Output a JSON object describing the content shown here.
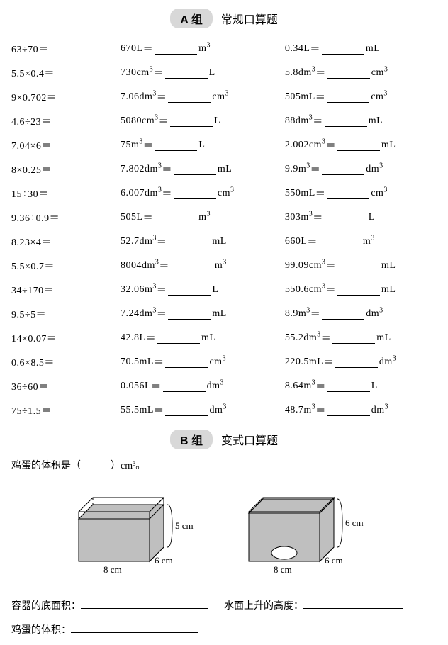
{
  "sectionA": {
    "badge": "A 组",
    "title": "常规口算题"
  },
  "sectionB": {
    "badge": "B 组",
    "title": "变式口算题"
  },
  "col1": [
    "63÷70＝",
    "5.5×0.4＝",
    "9×0.702＝",
    "4.6÷23＝",
    "7.04×6＝",
    "8×0.25＝",
    "15÷30＝",
    "9.36÷0.9＝",
    "8.23×4＝",
    "5.5×0.7＝",
    "34÷170＝",
    "9.5÷5＝",
    "14×0.07＝",
    "0.6×8.5＝",
    "36÷60＝",
    "75÷1.5＝"
  ],
  "col2": [
    {
      "val": "670",
      "f": "L",
      "t": "m³"
    },
    {
      "val": "730",
      "f": "cm³",
      "t": "L"
    },
    {
      "val": "7.06",
      "f": "dm³",
      "t": "cm³"
    },
    {
      "val": "5080",
      "f": "cm³",
      "t": "L"
    },
    {
      "val": "75",
      "f": "m³",
      "t": "L"
    },
    {
      "val": "7.802",
      "f": "dm³",
      "t": "mL"
    },
    {
      "val": "6.007",
      "f": "dm³",
      "t": "cm³"
    },
    {
      "val": "505",
      "f": "L",
      "t": "m³"
    },
    {
      "val": "52.7",
      "f": "dm³",
      "t": "mL"
    },
    {
      "val": "8004",
      "f": "dm³",
      "t": "m³"
    },
    {
      "val": "32.06",
      "f": "m³",
      "t": "L"
    },
    {
      "val": "7.24",
      "f": "dm³",
      "t": "mL"
    },
    {
      "val": "42.8",
      "f": "L",
      "t": "mL"
    },
    {
      "val": "70.5",
      "f": "mL",
      "t": "cm³"
    },
    {
      "val": "0.056",
      "f": "L",
      "t": "dm³"
    },
    {
      "val": "55.5",
      "f": "mL",
      "t": "dm³"
    }
  ],
  "col3": [
    {
      "val": "0.34",
      "f": "L",
      "t": "mL"
    },
    {
      "val": "5.8",
      "f": "dm³",
      "t": "cm³"
    },
    {
      "val": "505",
      "f": "mL",
      "t": "cm³"
    },
    {
      "val": "88",
      "f": "dm³",
      "t": "mL"
    },
    {
      "val": "2.002",
      "f": "cm³",
      "t": "mL"
    },
    {
      "val": "9.9",
      "f": "m³",
      "t": "dm³"
    },
    {
      "val": "550",
      "f": "mL",
      "t": "cm³"
    },
    {
      "val": "303",
      "f": "m³",
      "t": "L"
    },
    {
      "val": "660",
      "f": "L",
      "t": "m³"
    },
    {
      "val": "99.09",
      "f": "cm³",
      "t": "mL"
    },
    {
      "val": "550.6",
      "f": "cm³",
      "t": "mL"
    },
    {
      "val": "8.9",
      "f": "m³",
      "t": "dm³"
    },
    {
      "val": "55.2",
      "f": "dm³",
      "t": "mL"
    },
    {
      "val": "220.5",
      "f": "mL",
      "t": "dm³"
    },
    {
      "val": "8.64",
      "f": "m³",
      "t": "L"
    },
    {
      "val": "48.7",
      "f": "m³",
      "t": "dm³"
    }
  ],
  "eggPrompt": "鸡蛋的体积是（　　　）cm³。",
  "box1": {
    "width": "8 cm",
    "depth": "6 cm",
    "height": "5 cm"
  },
  "box2": {
    "width": "8 cm",
    "depth": "6 cm",
    "height": "6 cm"
  },
  "bottom": {
    "area": "容器的底面积：",
    "rise": "水面上升的高度：",
    "volume": "鸡蛋的体积："
  },
  "colors": {
    "boxFill": "#bfbfbf",
    "boxLine": "#000000",
    "eggFill": "#ffffff"
  }
}
